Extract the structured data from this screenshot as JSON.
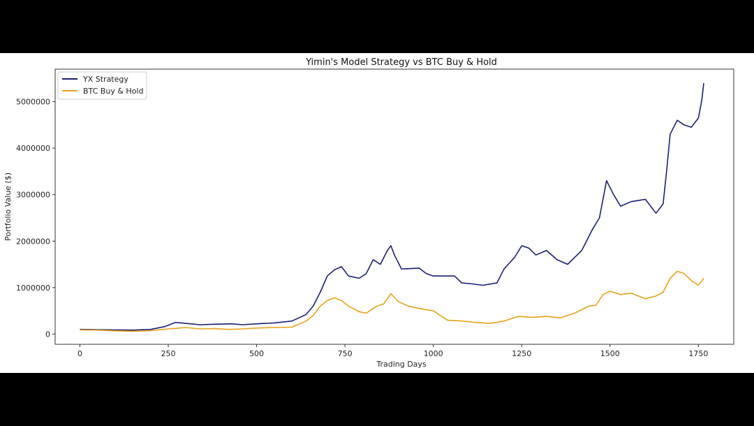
{
  "chart_data": {
    "type": "line",
    "title": "Yimin's Model Strategy vs BTC Buy & Hold",
    "xlabel": "Trading Days",
    "ylabel": "Portfolio Value ($)",
    "xlim": [
      -70,
      1850
    ],
    "ylim": [
      -220000,
      5700000
    ],
    "x_ticks": [
      0,
      250,
      500,
      750,
      1000,
      1250,
      1500,
      1750
    ],
    "y_ticks": [
      0,
      1000000,
      2000000,
      3000000,
      4000000,
      5000000
    ],
    "x_tick_labels": [
      "0",
      "250",
      "500",
      "750",
      "1000",
      "1250",
      "1500",
      "1750"
    ],
    "y_tick_labels": [
      "0",
      "1000000",
      "2000000",
      "3000000",
      "4000000",
      "5000000"
    ],
    "grid": false,
    "legend_position": "upper-left",
    "series": [
      {
        "name": "YX Strategy",
        "color": "#1a1f7a",
        "points": [
          [
            0,
            100000
          ],
          [
            50,
            95000
          ],
          [
            100,
            90000
          ],
          [
            150,
            85000
          ],
          [
            200,
            100000
          ],
          [
            240,
            160000
          ],
          [
            270,
            250000
          ],
          [
            300,
            230000
          ],
          [
            340,
            200000
          ],
          [
            370,
            210000
          ],
          [
            430,
            220000
          ],
          [
            460,
            200000
          ],
          [
            500,
            220000
          ],
          [
            550,
            240000
          ],
          [
            600,
            280000
          ],
          [
            640,
            420000
          ],
          [
            660,
            600000
          ],
          [
            680,
            900000
          ],
          [
            700,
            1250000
          ],
          [
            720,
            1380000
          ],
          [
            740,
            1450000
          ],
          [
            760,
            1250000
          ],
          [
            790,
            1200000
          ],
          [
            810,
            1300000
          ],
          [
            830,
            1600000
          ],
          [
            850,
            1500000
          ],
          [
            870,
            1800000
          ],
          [
            880,
            1900000
          ],
          [
            890,
            1700000
          ],
          [
            910,
            1400000
          ],
          [
            960,
            1420000
          ],
          [
            980,
            1300000
          ],
          [
            1000,
            1250000
          ],
          [
            1060,
            1250000
          ],
          [
            1080,
            1100000
          ],
          [
            1110,
            1080000
          ],
          [
            1140,
            1050000
          ],
          [
            1180,
            1100000
          ],
          [
            1200,
            1400000
          ],
          [
            1230,
            1650000
          ],
          [
            1250,
            1900000
          ],
          [
            1270,
            1850000
          ],
          [
            1290,
            1700000
          ],
          [
            1320,
            1800000
          ],
          [
            1350,
            1600000
          ],
          [
            1380,
            1500000
          ],
          [
            1420,
            1800000
          ],
          [
            1450,
            2250000
          ],
          [
            1470,
            2500000
          ],
          [
            1490,
            3300000
          ],
          [
            1510,
            3000000
          ],
          [
            1530,
            2750000
          ],
          [
            1560,
            2850000
          ],
          [
            1600,
            2900000
          ],
          [
            1630,
            2600000
          ],
          [
            1650,
            2800000
          ],
          [
            1660,
            3500000
          ],
          [
            1670,
            4300000
          ],
          [
            1690,
            4600000
          ],
          [
            1710,
            4500000
          ],
          [
            1730,
            4450000
          ],
          [
            1750,
            4650000
          ],
          [
            1760,
            5050000
          ],
          [
            1765,
            5400000
          ]
        ]
      },
      {
        "name": "BTC Buy & Hold",
        "color": "#e8a317",
        "points": [
          [
            0,
            90000
          ],
          [
            50,
            85000
          ],
          [
            100,
            70000
          ],
          [
            150,
            60000
          ],
          [
            200,
            75000
          ],
          [
            250,
            110000
          ],
          [
            300,
            140000
          ],
          [
            340,
            110000
          ],
          [
            380,
            120000
          ],
          [
            420,
            100000
          ],
          [
            460,
            110000
          ],
          [
            500,
            130000
          ],
          [
            550,
            140000
          ],
          [
            600,
            150000
          ],
          [
            640,
            280000
          ],
          [
            660,
            400000
          ],
          [
            680,
            600000
          ],
          [
            700,
            720000
          ],
          [
            720,
            780000
          ],
          [
            740,
            720000
          ],
          [
            760,
            600000
          ],
          [
            790,
            480000
          ],
          [
            810,
            450000
          ],
          [
            840,
            600000
          ],
          [
            860,
            650000
          ],
          [
            880,
            870000
          ],
          [
            900,
            700000
          ],
          [
            930,
            600000
          ],
          [
            960,
            550000
          ],
          [
            1000,
            500000
          ],
          [
            1040,
            300000
          ],
          [
            1080,
            280000
          ],
          [
            1120,
            250000
          ],
          [
            1160,
            230000
          ],
          [
            1200,
            280000
          ],
          [
            1240,
            380000
          ],
          [
            1280,
            360000
          ],
          [
            1320,
            380000
          ],
          [
            1360,
            350000
          ],
          [
            1400,
            450000
          ],
          [
            1440,
            600000
          ],
          [
            1460,
            620000
          ],
          [
            1480,
            850000
          ],
          [
            1500,
            920000
          ],
          [
            1530,
            850000
          ],
          [
            1560,
            880000
          ],
          [
            1600,
            760000
          ],
          [
            1630,
            820000
          ],
          [
            1650,
            900000
          ],
          [
            1670,
            1200000
          ],
          [
            1690,
            1350000
          ],
          [
            1710,
            1300000
          ],
          [
            1730,
            1150000
          ],
          [
            1750,
            1050000
          ],
          [
            1765,
            1200000
          ]
        ]
      }
    ]
  }
}
